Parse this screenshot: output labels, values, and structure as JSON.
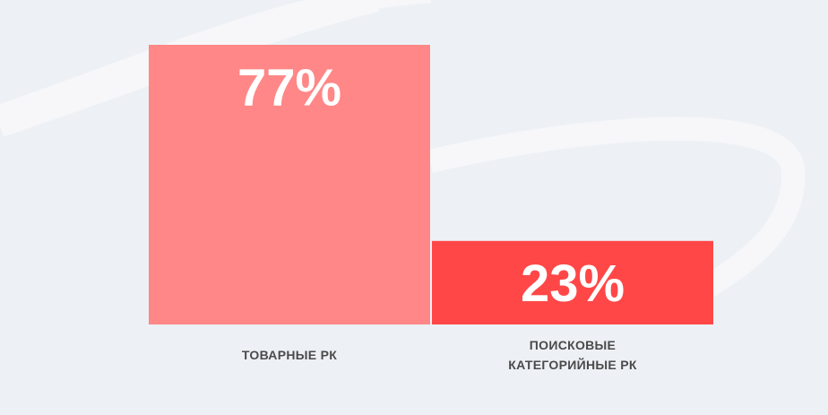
{
  "chart_data": {
    "type": "bar",
    "categories": [
      "ТОВАРНЫЕ РК",
      "ПОИСКОВЫЕ КАТЕГОРИЙНЫЕ РК"
    ],
    "values": [
      77,
      23
    ],
    "value_labels": [
      "77%",
      "23%"
    ],
    "colors": [
      "#ff8787",
      "#ff4747"
    ]
  }
}
